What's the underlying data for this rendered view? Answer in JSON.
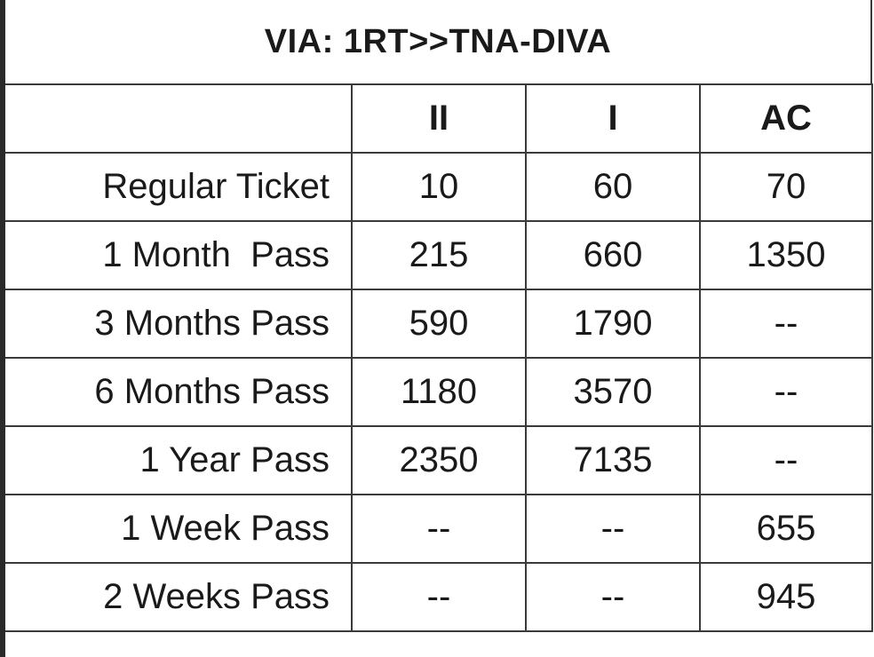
{
  "title": "VIA: 1RT>>TNA-DIVA",
  "columns": [
    "II",
    "I",
    "AC"
  ],
  "rows": [
    {
      "label": "Regular Ticket",
      "values": [
        "10",
        "60",
        "70"
      ]
    },
    {
      "label": "1 Month  Pass",
      "values": [
        "215",
        "660",
        "1350"
      ]
    },
    {
      "label": "3 Months Pass",
      "values": [
        "590",
        "1790",
        "--"
      ]
    },
    {
      "label": "6 Months Pass",
      "values": [
        "1180",
        "3570",
        "--"
      ]
    },
    {
      "label": "1 Year Pass",
      "values": [
        "2350",
        "7135",
        "--"
      ]
    },
    {
      "label": "1 Week Pass",
      "values": [
        "--",
        "--",
        "655"
      ]
    },
    {
      "label": "2 Weeks Pass",
      "values": [
        "--",
        "--",
        "945"
      ]
    }
  ]
}
